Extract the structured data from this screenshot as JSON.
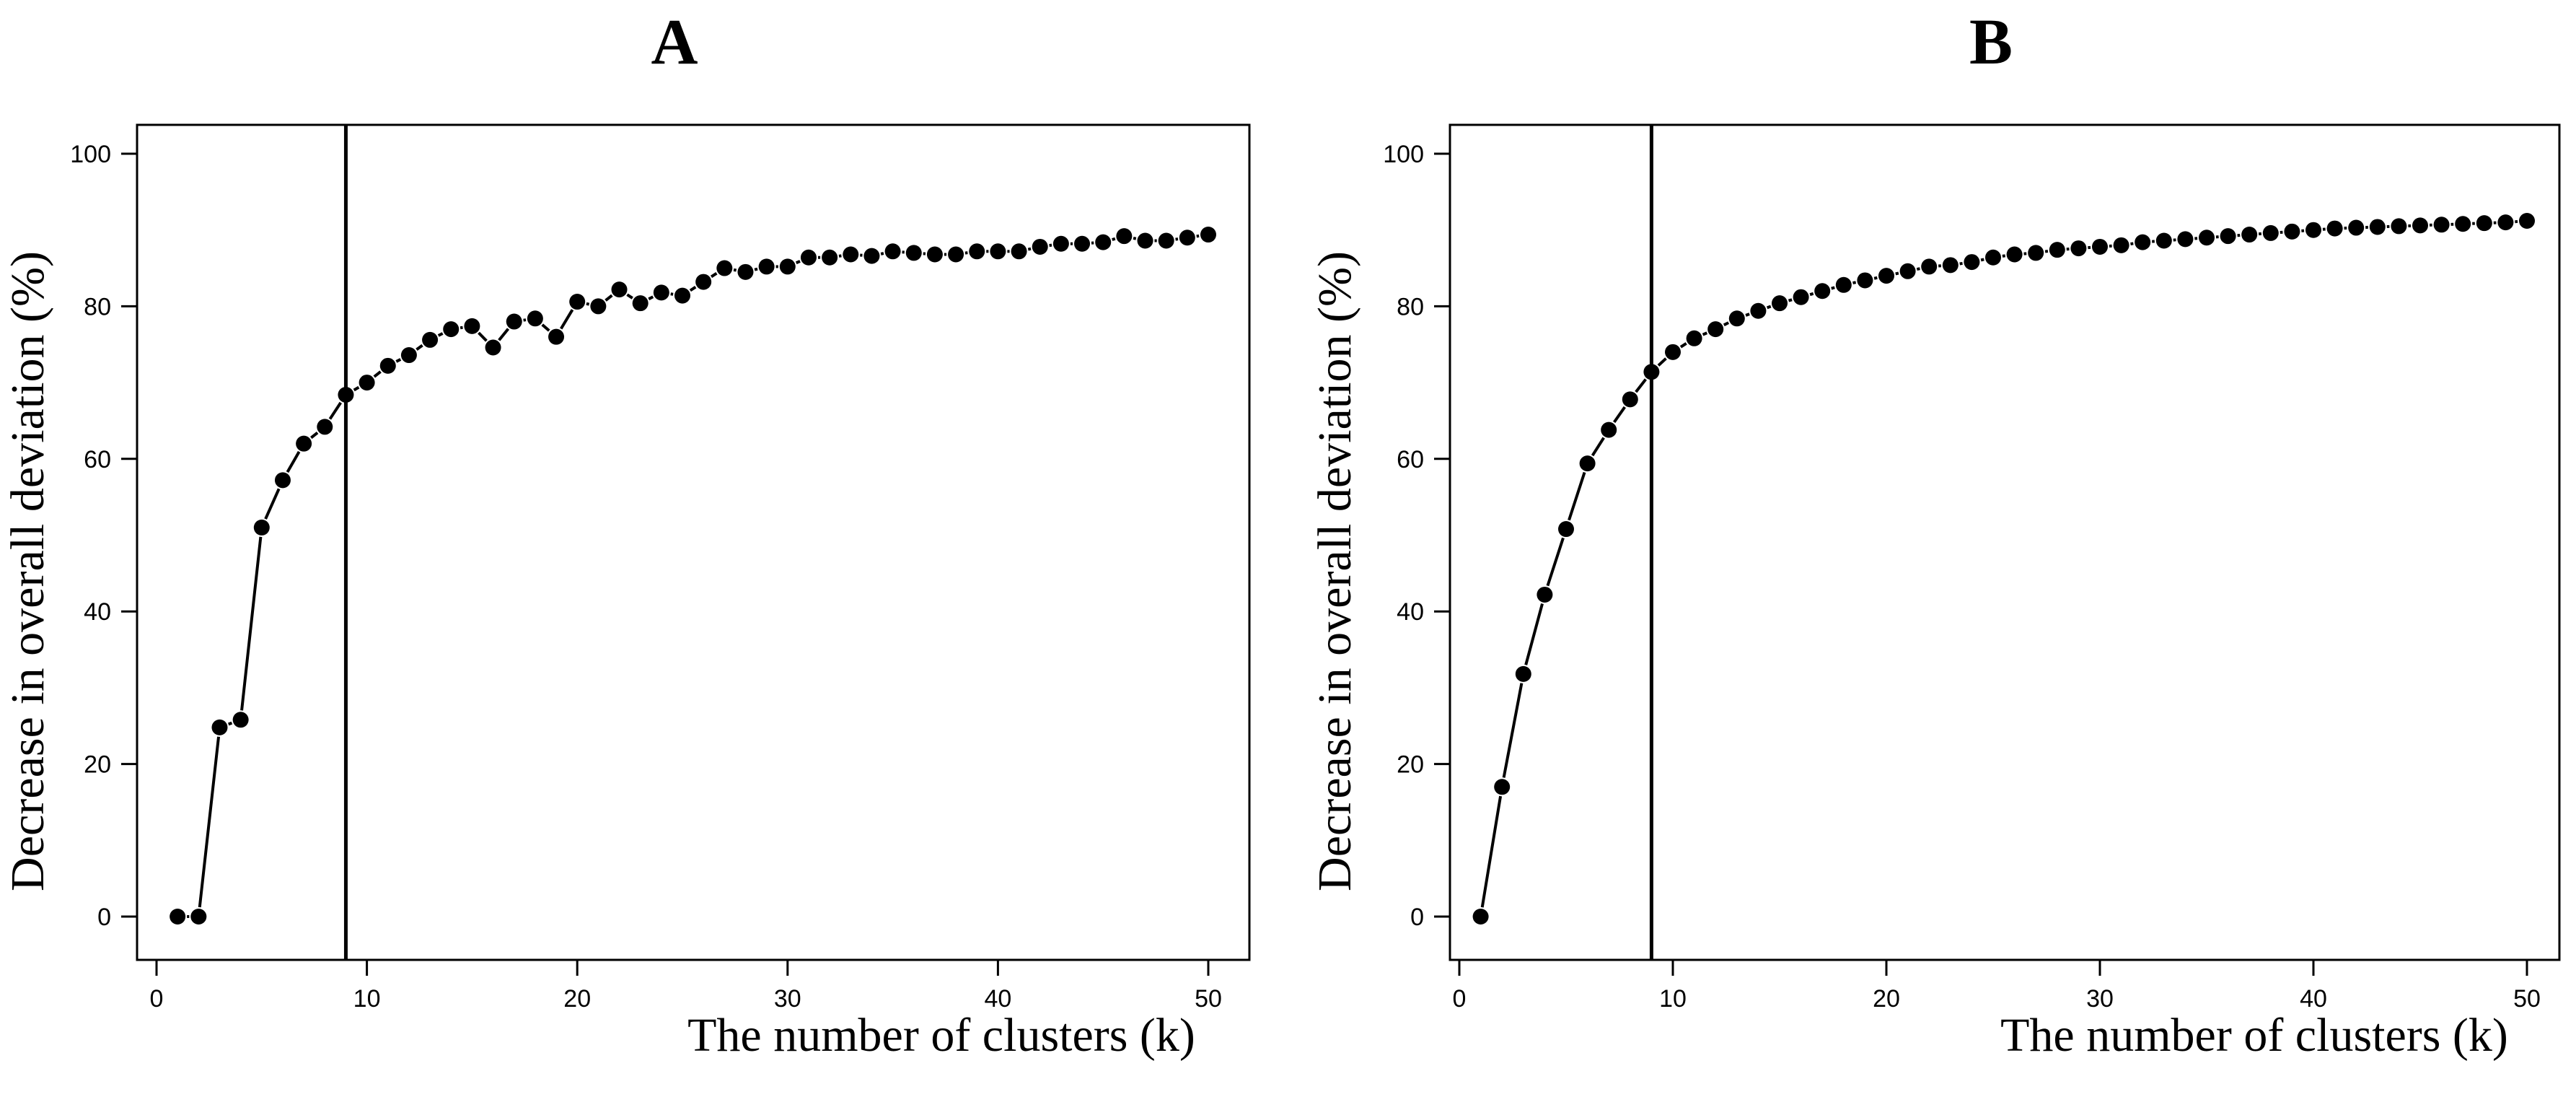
{
  "chart_data": [
    {
      "type": "scatter",
      "title": "A",
      "xlabel": "The number of clusters (k)",
      "ylabel": "Decrease in overall deviation (%)",
      "xlim": [
        0,
        50
      ],
      "ylim": [
        0,
        100
      ],
      "xticks": [
        "0",
        "10",
        "20",
        "30",
        "40",
        "50"
      ],
      "yticks": [
        "0",
        "20",
        "40",
        "60",
        "80",
        "100"
      ],
      "vline_x": 9,
      "grid": false,
      "x": [
        1,
        2,
        3,
        4,
        5,
        6,
        7,
        8,
        9,
        10,
        11,
        12,
        13,
        14,
        15,
        16,
        17,
        18,
        19,
        20,
        21,
        22,
        23,
        24,
        25,
        26,
        27,
        28,
        29,
        30,
        31,
        32,
        33,
        34,
        35,
        36,
        37,
        38,
        39,
        40,
        41,
        42,
        43,
        44,
        45,
        46,
        47,
        48,
        49,
        50
      ],
      "y": [
        0,
        0,
        24.8,
        25.8,
        51,
        57.2,
        62,
        64.2,
        68.4,
        70,
        72.2,
        73.6,
        75.6,
        77,
        77.4,
        74.6,
        78,
        78.4,
        76,
        80.6,
        80,
        82.2,
        80.4,
        81.8,
        81.4,
        83.2,
        85,
        84.5,
        85.2,
        85.2,
        86.4,
        86.4,
        86.8,
        86.6,
        87.2,
        87,
        86.8,
        86.8,
        87.2,
        87.2,
        87.2,
        87.8,
        88.2,
        88.2,
        88.4,
        89.2,
        88.6,
        88.6,
        89,
        89.4
      ]
    },
    {
      "type": "scatter",
      "title": "B",
      "xlabel": "The number of clusters (k)",
      "ylabel": "Decrease in overall deviation (%)",
      "xlim": [
        0,
        50
      ],
      "ylim": [
        0,
        100
      ],
      "xticks": [
        "0",
        "10",
        "20",
        "30",
        "40",
        "50"
      ],
      "yticks": [
        "0",
        "20",
        "40",
        "60",
        "80",
        "100"
      ],
      "vline_x": 9,
      "grid": false,
      "x": [
        1,
        2,
        3,
        4,
        5,
        6,
        7,
        8,
        9,
        10,
        11,
        12,
        13,
        14,
        15,
        16,
        17,
        18,
        19,
        20,
        21,
        22,
        23,
        24,
        25,
        26,
        27,
        28,
        29,
        30,
        31,
        32,
        33,
        34,
        35,
        36,
        37,
        38,
        39,
        40,
        41,
        42,
        43,
        44,
        45,
        46,
        47,
        48,
        49,
        50
      ],
      "y": [
        0,
        17,
        31.8,
        42.2,
        50.8,
        59.4,
        63.8,
        67.8,
        71.4,
        74,
        75.8,
        77,
        78.4,
        79.4,
        80.4,
        81.2,
        82,
        82.8,
        83.4,
        84,
        84.6,
        85.2,
        85.4,
        85.8,
        86.4,
        86.8,
        87,
        87.4,
        87.6,
        87.8,
        88,
        88.4,
        88.6,
        88.8,
        89,
        89.2,
        89.4,
        89.6,
        89.8,
        90,
        90.2,
        90.3,
        90.4,
        90.5,
        90.6,
        90.7,
        90.8,
        90.9,
        91,
        91.2
      ]
    }
  ]
}
